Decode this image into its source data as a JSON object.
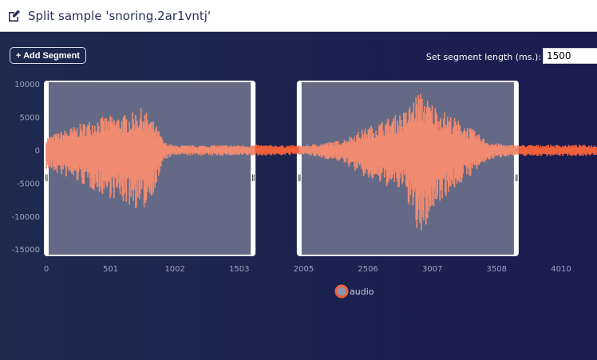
{
  "header": {
    "title": "Split sample 'snoring.2ar1vntj'",
    "icon": "edit-icon"
  },
  "toolbar": {
    "add_segment_label": "+ Add Segment",
    "segment_length_label": "Set segment length (ms.):",
    "segment_length_value": "1500"
  },
  "colors": {
    "wave": "#f08a70",
    "wave_outside": "#f0603a",
    "segment_fill": "#646a85",
    "segment_border": "#ffffff"
  },
  "chart_data": {
    "type": "line",
    "xlim": [
      0,
      4300
    ],
    "ylim": [
      -15000,
      10000
    ],
    "x_ticks": [
      "0",
      "501",
      "1002",
      "1503",
      "2005",
      "2506",
      "3007",
      "3508",
      "4010"
    ],
    "x_tick_values": [
      0,
      501,
      1002,
      1503,
      2005,
      2506,
      3007,
      3508,
      4010
    ],
    "y_ticks": [
      "10000",
      "5000",
      "0",
      "-5000",
      "-10000",
      "-15000"
    ],
    "y_tick_values": [
      10000,
      5000,
      0,
      -5000,
      -10000,
      -15000
    ],
    "segments": [
      {
        "start": 0,
        "end": 1630
      },
      {
        "start": 1970,
        "end": 3680
      }
    ],
    "envelope": [
      [
        0,
        2000,
        -3000
      ],
      [
        200,
        3500,
        -4500
      ],
      [
        400,
        5000,
        -6500
      ],
      [
        650,
        5500,
        -8500
      ],
      [
        750,
        6500,
        -9500
      ],
      [
        850,
        4000,
        -6000
      ],
      [
        920,
        1200,
        -1500
      ],
      [
        1000,
        700,
        -800
      ],
      [
        1650,
        800,
        -900
      ],
      [
        2000,
        700,
        -700
      ],
      [
        2300,
        1500,
        -1800
      ],
      [
        2500,
        3500,
        -4500
      ],
      [
        2800,
        6000,
        -6500
      ],
      [
        2900,
        9000,
        -14000
      ],
      [
        3050,
        6500,
        -8000
      ],
      [
        3300,
        3500,
        -4000
      ],
      [
        3450,
        1200,
        -1500
      ],
      [
        3600,
        800,
        -900
      ],
      [
        4300,
        800,
        -900
      ]
    ],
    "legend": [
      {
        "label": "audio"
      }
    ]
  }
}
